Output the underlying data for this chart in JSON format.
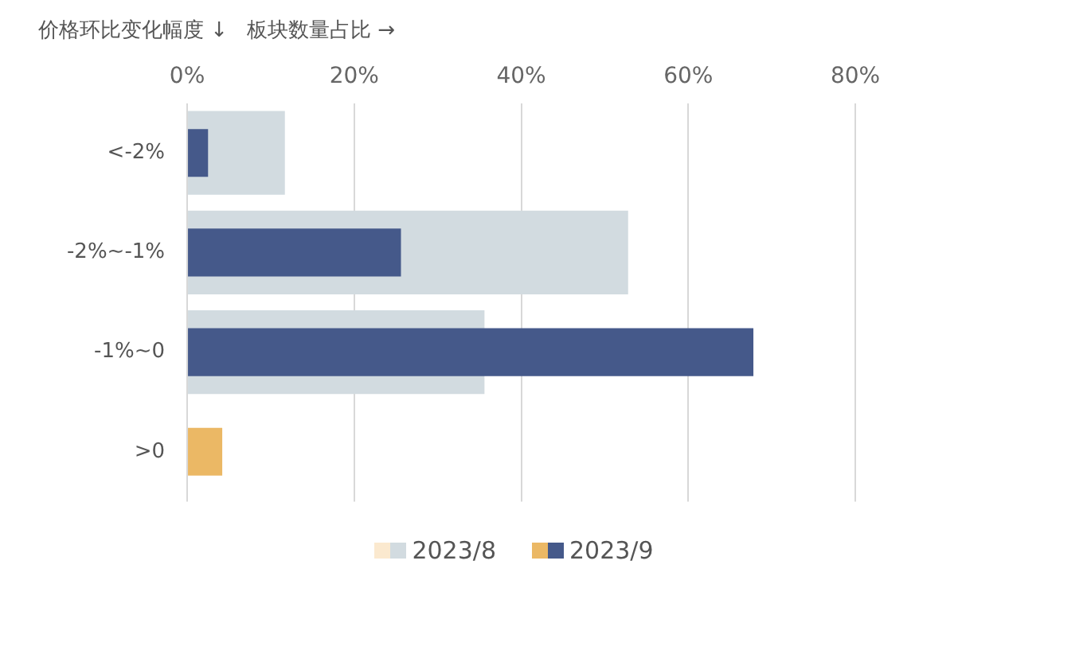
{
  "chart_data": {
    "type": "bar",
    "orientation": "horizontal",
    "ylabel": "价格环比变化幅度 ↓",
    "xlabel": "板块数量占比 →",
    "categories": [
      "<-2%",
      "-2%~-1%",
      "-1%~0",
      ">0"
    ],
    "series": [
      {
        "name": "2023/8",
        "colors": [
          "#d2dbe0",
          "#d2dbe0",
          "#d2dbe0",
          "#fbe9cf"
        ],
        "values": [
          11.7,
          52.8,
          35.6,
          0
        ]
      },
      {
        "name": "2023/9",
        "colors": [
          "#45598a",
          "#45598a",
          "#45598a",
          "#ebb865"
        ],
        "values": [
          2.5,
          25.6,
          67.8,
          4.2
        ]
      }
    ],
    "xlim": [
      0,
      80
    ],
    "xticks": [
      {
        "value": 0,
        "label": "0%"
      },
      {
        "value": 20,
        "label": "20%"
      },
      {
        "value": 40,
        "label": "40%"
      },
      {
        "value": 60,
        "label": "60%"
      },
      {
        "value": 80,
        "label": "80%"
      }
    ],
    "grid": "x",
    "legend": "bottom"
  }
}
